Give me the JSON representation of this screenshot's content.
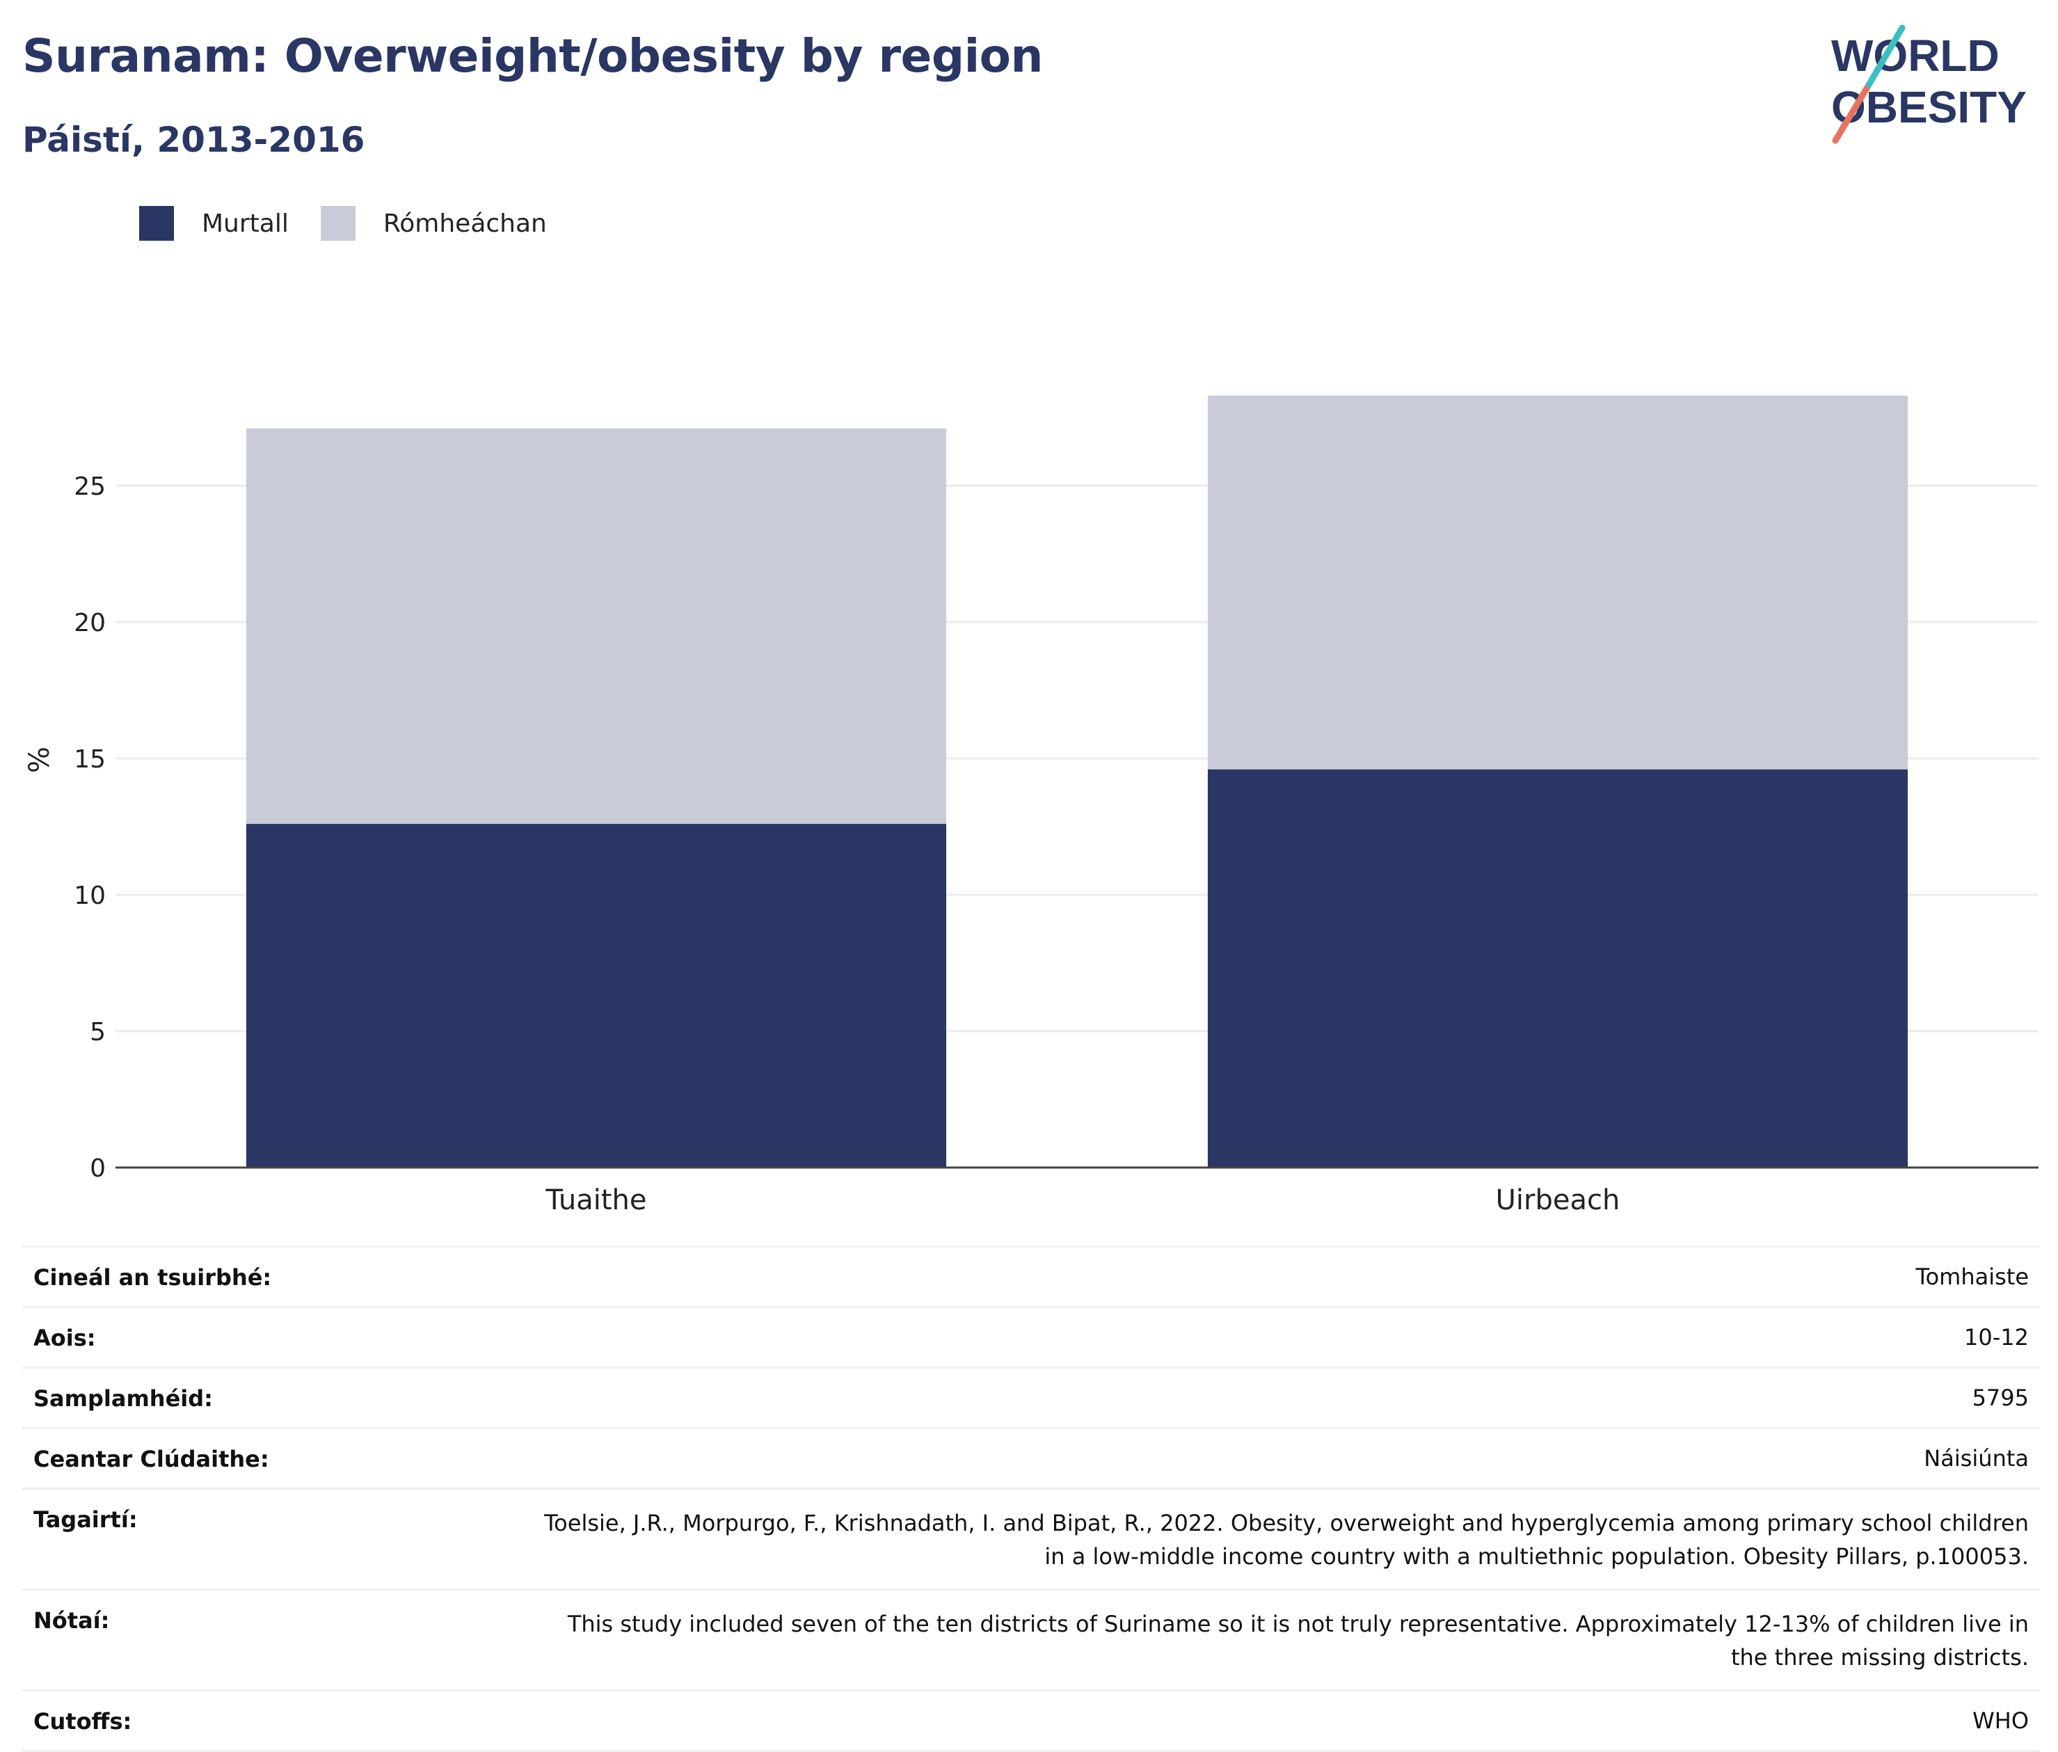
{
  "title": "Suranam: Overweight/obesity by region",
  "subtitle": "Páistí, 2013-2016",
  "logo": {
    "line1": "WORLD",
    "line2": "OBESITY"
  },
  "colors": {
    "obese": "#2a3663",
    "overweight": "#c9ccd8",
    "title": "#2a3663"
  },
  "chart_data": {
    "type": "bar",
    "stacked": true,
    "categories": [
      "Tuaithe",
      "Uirbeach"
    ],
    "series": [
      {
        "name": "Murtall",
        "values": [
          12.6,
          14.6
        ],
        "color": "#2a3663"
      },
      {
        "name": "Rómheáchan",
        "values": [
          14.5,
          13.7
        ],
        "color": "#c9ccd8"
      }
    ],
    "ylabel": "%",
    "ylim": [
      0,
      30
    ],
    "yticks": [
      0,
      5,
      10,
      15,
      20,
      25
    ],
    "grid": true,
    "legend": "top-left"
  },
  "meta": [
    {
      "label": "Cineál an tsuirbhé:",
      "value": "Tomhaiste"
    },
    {
      "label": "Aois:",
      "value": "10-12"
    },
    {
      "label": "Samplamhéid:",
      "value": "5795"
    },
    {
      "label": "Ceantar Clúdaithe:",
      "value": "Náisiúnta"
    },
    {
      "label": "Tagairtí:",
      "value": "Toelsie, J.R., Morpurgo, F., Krishnadath, I. and Bipat, R., 2022. Obesity, overweight and hyperglycemia among primary school children in a low-middle income country with a multiethnic population. Obesity Pillars, p.100053."
    },
    {
      "label": "Nótaí:",
      "value": "This study included seven of the ten districts of Suriname so it is not truly representative. Approximately 12-13% of children live in the three missing districts."
    },
    {
      "label": "Cutoffs:",
      "value": "WHO"
    }
  ]
}
